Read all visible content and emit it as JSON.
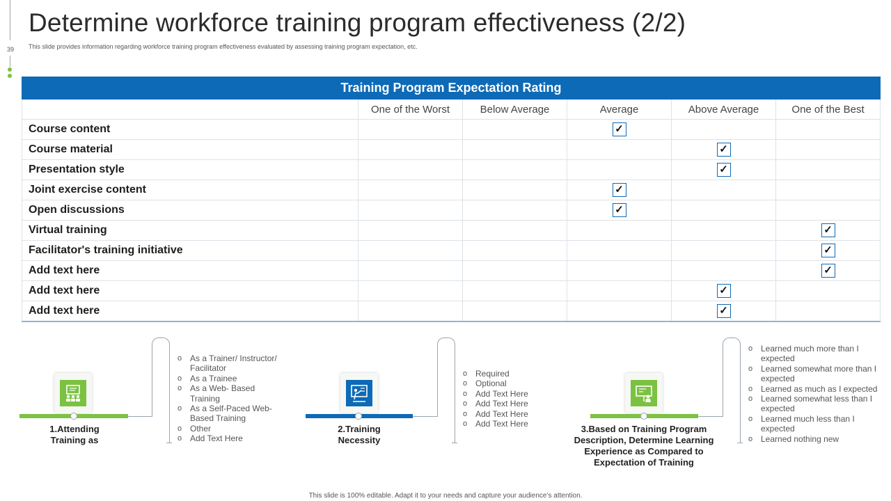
{
  "page": {
    "number": "39",
    "title": "Determine workforce training program effectiveness (2/2)",
    "subtitle": "This slide provides information regarding workforce training program effectiveness evaluated by assessing training program expectation, etc.",
    "footer": "This slide is 100% editable. Adapt it to your needs and capture your audience’s attention."
  },
  "table": {
    "header": "Training Program Expectation Rating",
    "columns": [
      "One of the Worst",
      "Below Average",
      "Average",
      "Above Average",
      "One of the Best"
    ],
    "check_glyph": "✓",
    "rows": [
      {
        "label": "Course content",
        "checked_column": 2
      },
      {
        "label": "Course material",
        "checked_column": 3
      },
      {
        "label": "Presentation style",
        "checked_column": 3
      },
      {
        "label": "Joint exercise content",
        "checked_column": 2
      },
      {
        "label": "Open discussions",
        "checked_column": 2
      },
      {
        "label": "Virtual training",
        "checked_column": 4
      },
      {
        "label": "Facilitator's training initiative",
        "checked_column": 4
      },
      {
        "label": "Add text here",
        "checked_column": 4
      },
      {
        "label": "Add text here",
        "checked_column": 3
      },
      {
        "label": "Add text here",
        "checked_column": 3
      }
    ]
  },
  "steps": [
    {
      "label_line1": "1.Attending",
      "label_line2": "Training as",
      "icon": "classroom-icon",
      "bar_color": "#7cc242",
      "options": [
        "As a Trainer/ Instructor/ Facilitator",
        "As a Trainee",
        "As a Web- Based Training",
        "As a Self-Paced Web- Based Training",
        "Other",
        "Add Text Here"
      ]
    },
    {
      "label_line1": "2.Training",
      "label_line2": "Necessity",
      "icon": "presentation-board-icon",
      "bar_color": "#0d6ab7",
      "options": [
        "Required",
        "Optional",
        "Add Text Here",
        "Add Text Here",
        "Add Text Here",
        "Add Text Here"
      ]
    },
    {
      "label_line1": "3.Based on Training Program",
      "label_line2": "Description, Determine Learning",
      "label_line3": "Experience as Compared to",
      "label_line4": "Expectation of Training",
      "icon": "training-board-icon",
      "bar_color": "#7cc242",
      "options": [
        "Learned much more than I expected",
        "Learned somewhat more than I expected",
        "Learned as much as I expected",
        "Learned somewhat less than I expected",
        "Learned much less than I expected",
        "Learned nothing new"
      ]
    }
  ],
  "colors": {
    "accent_blue": "#0d6ab7",
    "accent_green": "#7cc242"
  }
}
